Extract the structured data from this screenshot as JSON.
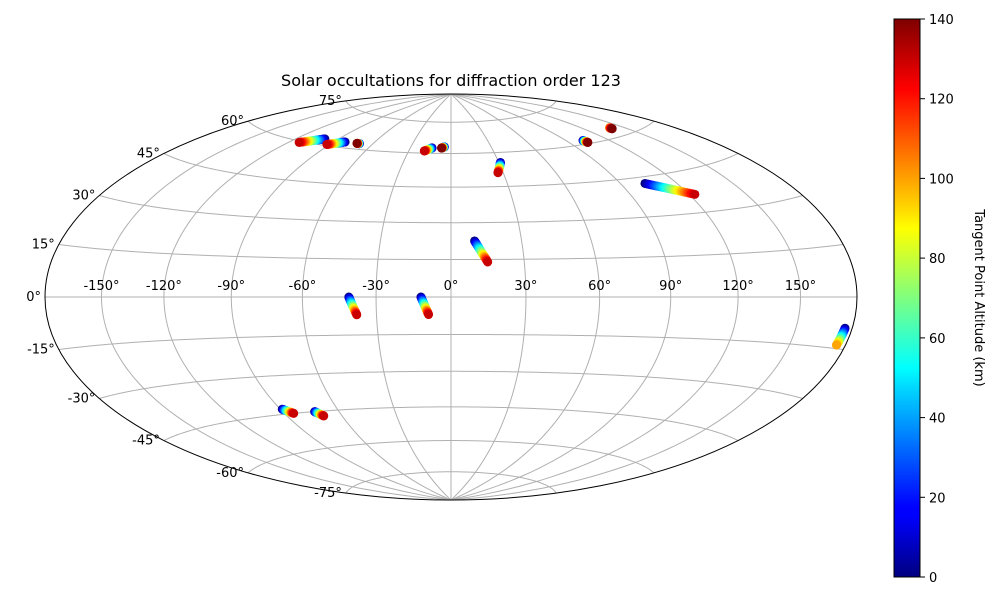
{
  "chart_data": {
    "type": "scatter",
    "projection": "hammer",
    "title": "Solar occultations for diffraction order 123",
    "grid": true,
    "lon_ticks": [
      -150,
      -120,
      -90,
      -60,
      -30,
      0,
      30,
      60,
      90,
      120,
      150
    ],
    "lon_tick_labels": [
      "-150°",
      "-120°",
      "-90°",
      "-60°",
      "-30°",
      "0°",
      "30°",
      "60°",
      "90°",
      "120°",
      "150°"
    ],
    "lat_ticks": [
      75,
      60,
      45,
      30,
      15,
      0,
      -15,
      -30,
      -45,
      -60,
      -75
    ],
    "lat_tick_labels": [
      "75°",
      "60°",
      "45°",
      "30°",
      "15°",
      "0°",
      "-15°",
      "-30°",
      "-45°",
      "-60°",
      "-75°"
    ],
    "colorbar": {
      "label": "Tangent Point Altitude (km)",
      "colormap": "jet",
      "min": 0,
      "max": 140,
      "ticks": [
        0,
        20,
        40,
        60,
        80,
        100,
        120,
        140
      ],
      "tick_labels": [
        "0",
        "20",
        "40",
        "60",
        "80",
        "100",
        "120",
        "140"
      ]
    },
    "occultations": [
      {
        "lon_start": -100,
        "lat_start": 62.5,
        "alt_start": 0,
        "lon_end": -113,
        "lat_end": 59.5,
        "alt_end": 130
      },
      {
        "lon_start": -82,
        "lat_start": 62.5,
        "alt_start": 0,
        "lon_end": -92,
        "lat_end": 60.5,
        "alt_end": 130
      },
      {
        "lon_start": -70,
        "lat_start": 62.5,
        "alt_start": 0,
        "lon_end": -72,
        "lat_end": 62.5,
        "alt_end": 140
      },
      {
        "lon_start": -14,
        "lat_start": 62.5,
        "alt_start": 0,
        "lon_end": -19,
        "lat_end": 61.0,
        "alt_end": 130
      },
      {
        "lon_start": -5,
        "lat_start": 63.0,
        "alt_start": 0,
        "lon_end": -7,
        "lat_end": 62.5,
        "alt_end": 140
      },
      {
        "lon_start": 31,
        "lat_start": 55.5,
        "alt_start": 0,
        "lon_end": 27,
        "lat_end": 51.0,
        "alt_end": 130
      },
      {
        "lon_start": 102,
        "lat_start": 61.5,
        "alt_start": 0,
        "lon_end": 103,
        "lat_end": 60.5,
        "alt_end": 140
      },
      {
        "lon_start": 140,
        "lat_start": 63.5,
        "alt_start": 100,
        "lon_end": 140,
        "lat_end": 63.0,
        "alt_end": 140
      },
      {
        "lon_start": 103,
        "lat_start": 42.5,
        "alt_start": 0,
        "lon_end": 123,
        "lat_end": 36.5,
        "alt_end": 130
      },
      {
        "lon_start": 10,
        "lat_start": 22.5,
        "alt_start": 0,
        "lon_end": 15,
        "lat_end": 14.0,
        "alt_end": 130
      },
      {
        "lon_start": -41,
        "lat_start": 0,
        "alt_start": 0,
        "lon_end": -38,
        "lat_end": -7.0,
        "alt_end": 130
      },
      {
        "lon_start": -12,
        "lat_start": 0,
        "alt_start": 0,
        "lon_end": -9,
        "lat_end": -7.0,
        "alt_end": 130
      },
      {
        "lon_start": 176,
        "lat_start": -9.0,
        "alt_start": 0,
        "lon_end": 175,
        "lat_end": -14.0,
        "alt_end": 100
      },
      {
        "lon_start": -89,
        "lat_start": -43.0,
        "alt_start": 0,
        "lon_end": -85,
        "lat_end": -45.0,
        "alt_end": 130
      },
      {
        "lon_start": -73,
        "lat_start": -45.0,
        "alt_start": 0,
        "lon_end": -70,
        "lat_end": -47.0,
        "alt_end": 130
      }
    ]
  }
}
